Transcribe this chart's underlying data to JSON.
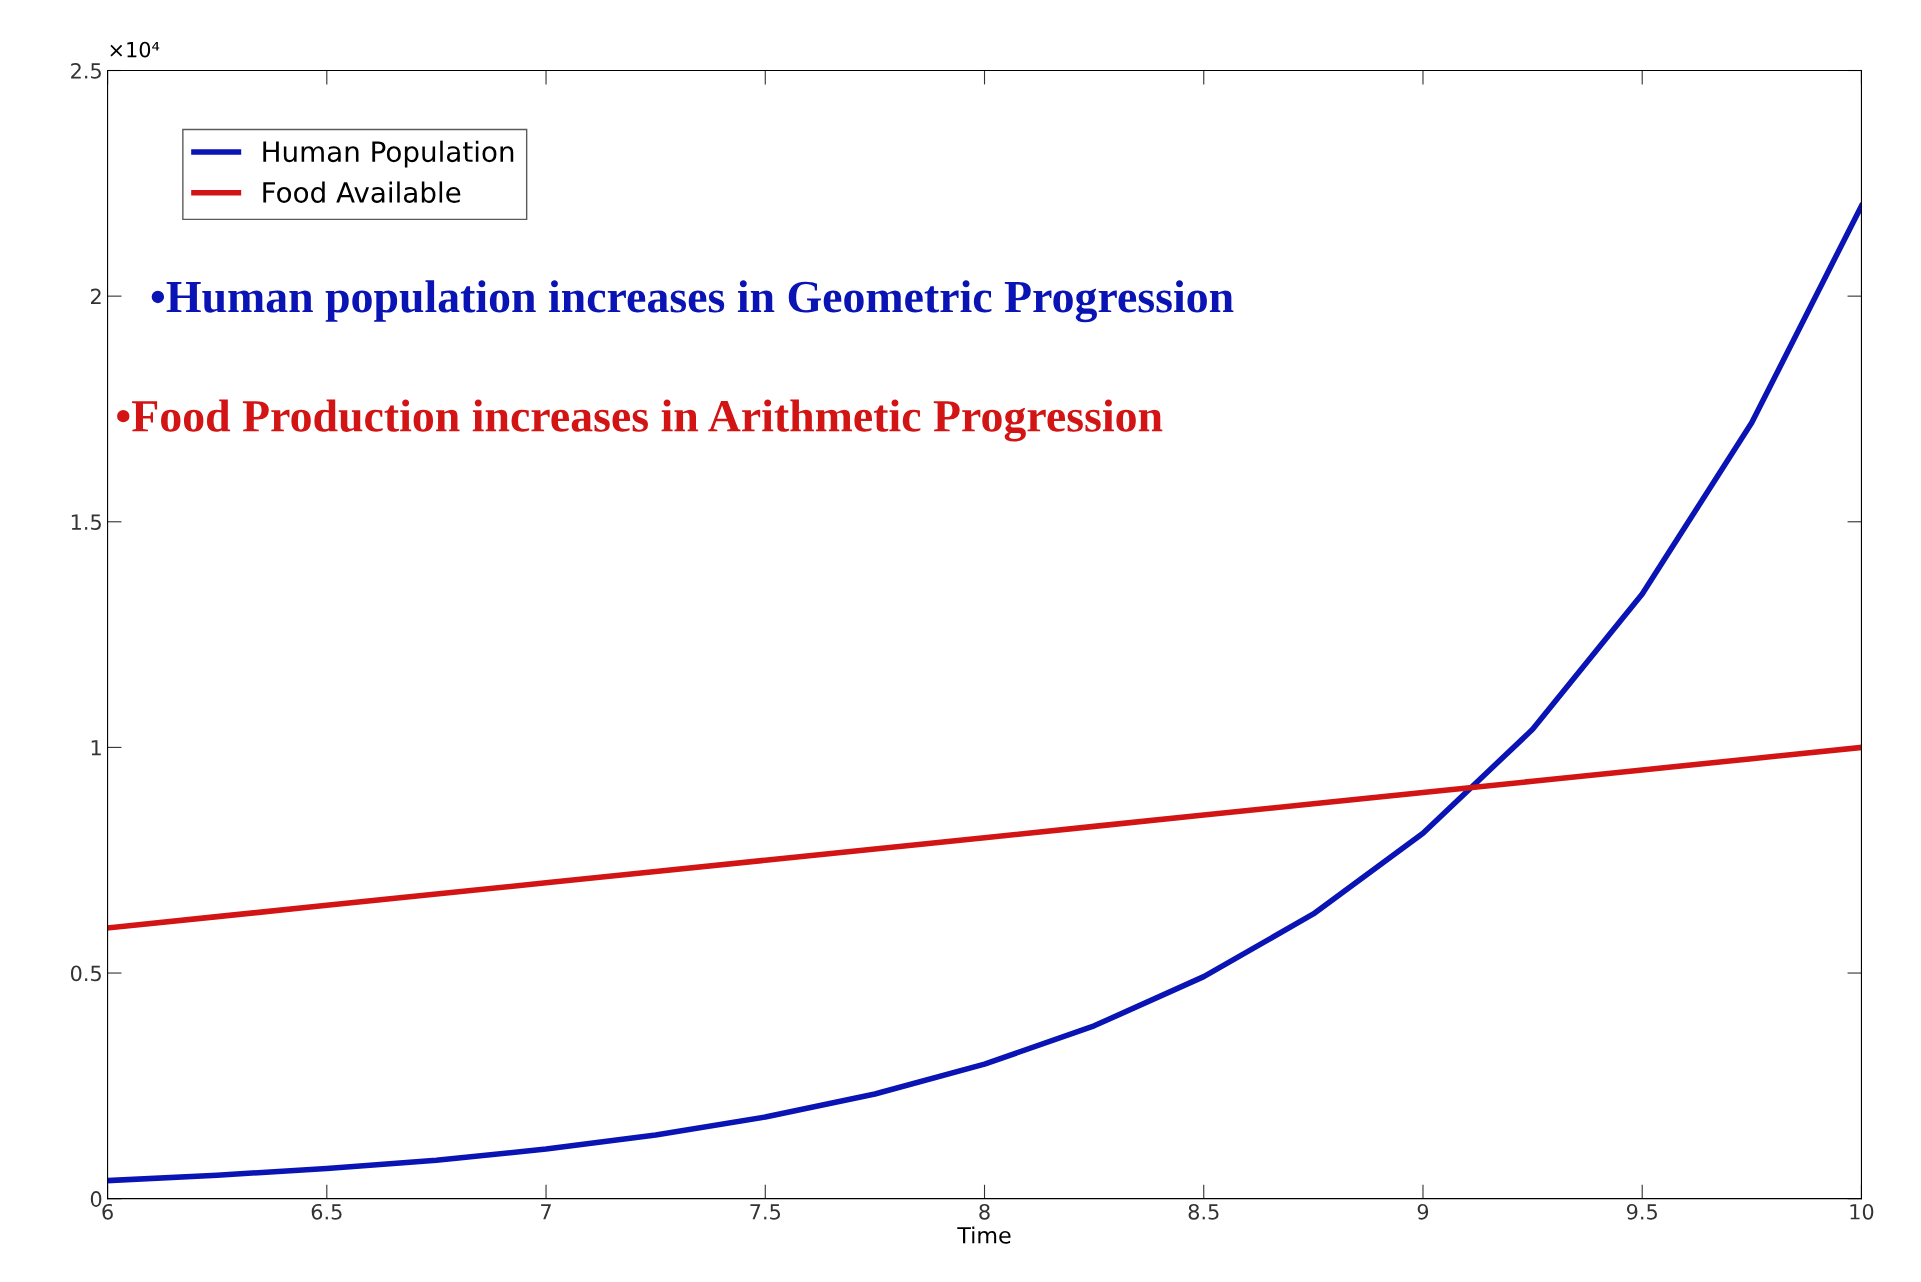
{
  "chart_data": {
    "type": "line",
    "xlabel": "Time",
    "x": [
      6,
      6.25,
      6.5,
      6.75,
      7,
      7.25,
      7.5,
      7.75,
      8,
      8.25,
      8.5,
      8.75,
      9,
      9.25,
      9.5,
      9.75,
      10
    ],
    "series": [
      {
        "name": "Human Population",
        "color": "#0a14b4",
        "values": [
          0.04,
          0.052,
          0.067,
          0.085,
          0.11,
          0.141,
          0.181,
          0.232,
          0.298,
          0.383,
          0.492,
          0.631,
          0.81,
          1.04,
          1.34,
          1.72,
          2.2
        ]
      },
      {
        "name": "Food Available",
        "color": "#d21414",
        "values": [
          0.6,
          0.625,
          0.65,
          0.675,
          0.7,
          0.725,
          0.75,
          0.775,
          0.8,
          0.825,
          0.85,
          0.875,
          0.9,
          0.925,
          0.95,
          0.975,
          1.0
        ]
      }
    ],
    "xlim": [
      6,
      10
    ],
    "xticks": [
      6,
      6.5,
      7,
      7.5,
      8,
      8.5,
      9,
      9.5,
      10
    ],
    "ylim": [
      0,
      2.5
    ],
    "yticks": [
      0,
      0.5,
      1,
      1.5,
      2,
      2.5
    ],
    "annotations": [
      "×10⁴",
      "•Human population increases in Geometric Progression",
      "•Food Production increases in Arithmetic Progression"
    ],
    "legend": "top left",
    "grid": false,
    "marker": "none",
    "line_style": "solid"
  }
}
